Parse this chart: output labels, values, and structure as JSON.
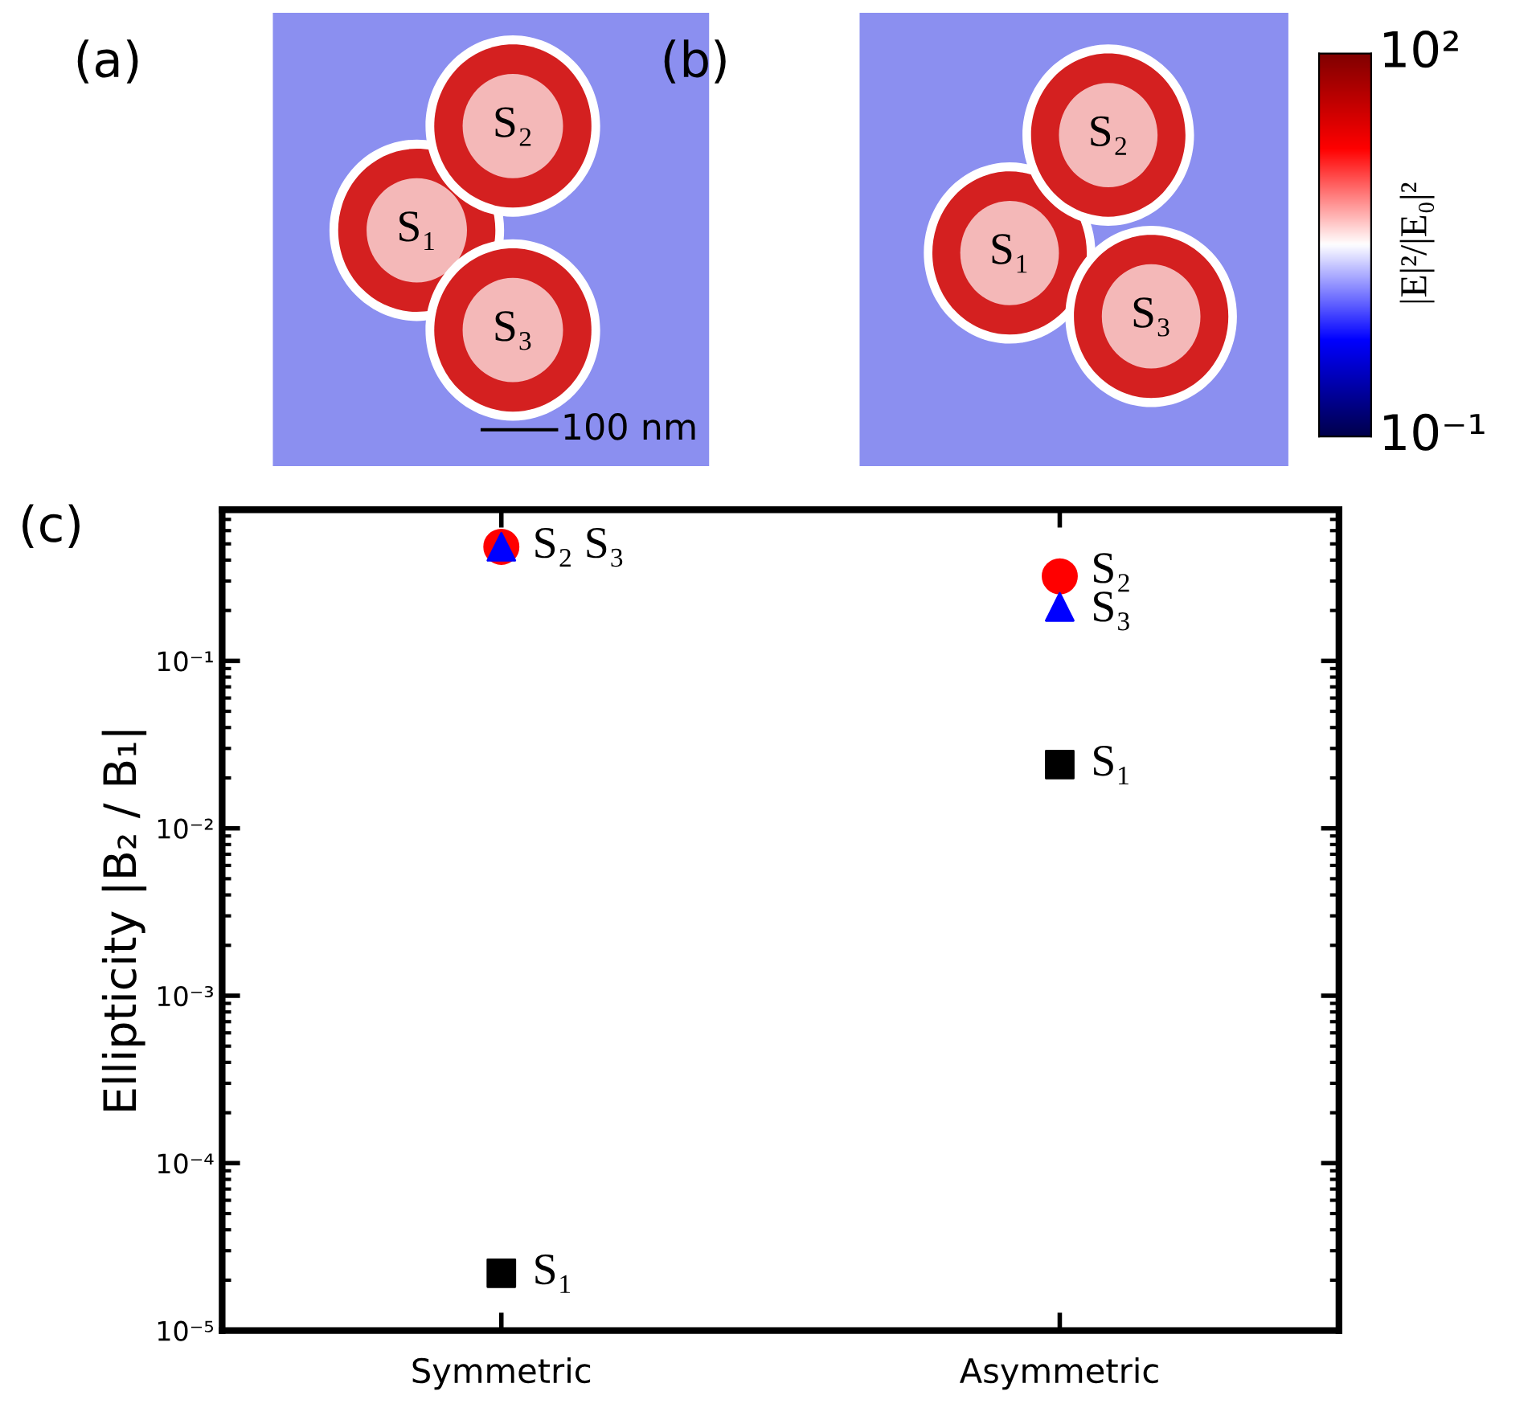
{
  "chart_data": [
    {
      "type": "other",
      "title": "(a)",
      "annotations": [
        "S₁",
        "S₂",
        "S₃",
        "100 nm"
      ]
    },
    {
      "type": "other",
      "title": "(b)",
      "annotations": [
        "S₁",
        "S₂",
        "S₃",
        "10²",
        "10⁻¹",
        "|E|²/|E₀|²"
      ]
    },
    {
      "type": "scatter",
      "title": "(c)",
      "ylabel": "Ellipticity |B₂ / B₁|",
      "categories": [
        "Symmetric",
        "Asymmetric"
      ],
      "log": "y",
      "ylim": [
        1e-05,
        0.8
      ],
      "yticks": [
        {
          "value": 1e-05,
          "label": "10⁻⁵"
        },
        {
          "value": 0.0001,
          "label": "10⁻⁴"
        },
        {
          "value": 0.001,
          "label": "10⁻³"
        },
        {
          "value": 0.01,
          "label": "10⁻²"
        },
        {
          "value": 0.1,
          "label": "10⁻¹"
        }
      ],
      "grid": false,
      "legend": false,
      "series": [
        {
          "color": "#000000",
          "marker": "square",
          "values": [
            2.2e-05,
            0.024
          ]
        },
        {
          "color": "#ff0000",
          "marker": "circle",
          "values": [
            0.48,
            0.32
          ]
        },
        {
          "color": "#0000ff",
          "marker": "triangle",
          "values": [
            0.48,
            0.21
          ]
        }
      ],
      "annotations": [
        {
          "text": "S₂ S₃",
          "x": "Symmetric",
          "y": 0.48
        },
        {
          "text": "S₁",
          "x": "Symmetric",
          "y": 2.2e-05
        },
        {
          "text": "S₂",
          "x": "Asymmetric",
          "y": 0.34
        },
        {
          "text": "S₃",
          "x": "Asymmetric",
          "y": 0.2
        },
        {
          "text": "S₁",
          "x": "Asymmetric",
          "y": 0.024
        }
      ]
    }
  ]
}
